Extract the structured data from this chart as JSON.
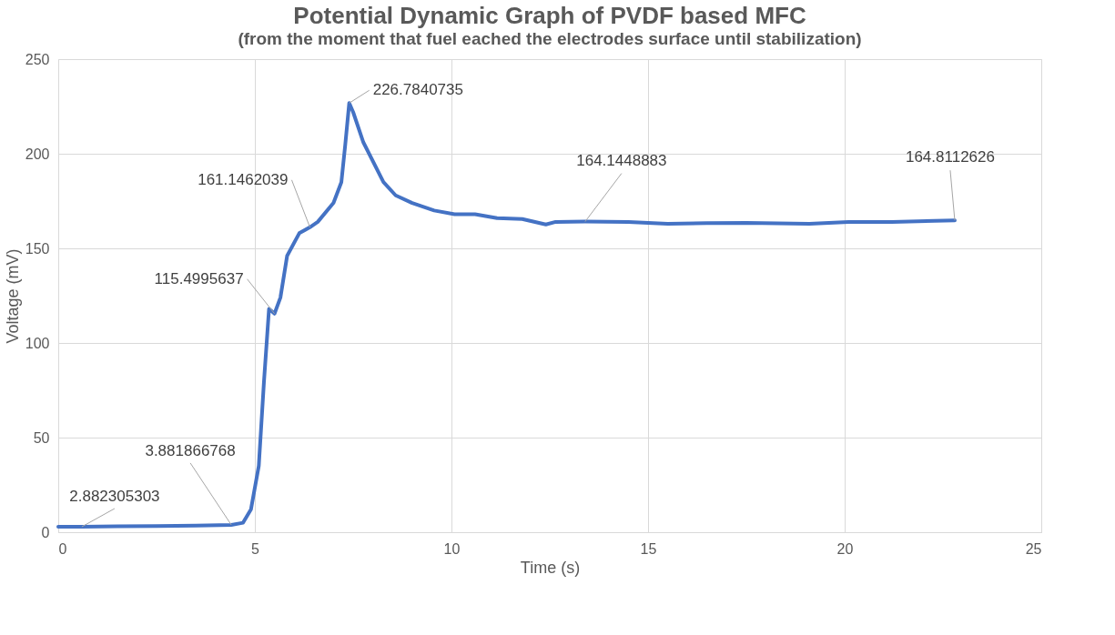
{
  "chart_data": {
    "type": "line",
    "title": "Potential Dynamic Graph of PVDF based MFC",
    "subtitle": "(from the moment that fuel eached the electrodes surface until stabilization)",
    "xlabel": "Time (s)",
    "ylabel": "Voltage (mV)",
    "x": [
      0,
      0.6,
      1.5,
      2.5,
      3.5,
      4.4,
      4.7,
      4.9,
      5.1,
      5.23,
      5.36,
      5.5,
      5.65,
      5.82,
      6.13,
      6.4,
      6.6,
      7.0,
      7.2,
      7.3,
      7.4,
      7.5,
      7.76,
      8.27,
      8.58,
      9.0,
      9.56,
      10.08,
      10.6,
      11.16,
      11.8,
      12.4,
      12.65,
      13.4,
      14.5,
      15.5,
      16.5,
      17.5,
      19.1,
      20.1,
      21.2,
      22.8
    ],
    "series": [
      {
        "color": "#4472c4",
        "values": [
          2.9,
          2.882305303,
          3.1,
          3.2,
          3.5,
          3.881866768,
          5,
          12,
          35,
          79,
          118,
          115.4995637,
          124,
          146,
          158,
          161.1462039,
          164,
          174,
          185,
          205,
          226.7840735,
          222,
          206,
          185,
          178,
          174,
          170,
          168,
          168,
          166,
          165.5,
          162.6,
          164,
          164.1448883,
          164,
          163,
          163.3,
          163.5,
          163,
          164,
          164,
          164.8112626
        ]
      }
    ],
    "xlim": [
      0,
      25
    ],
    "ylim": [
      0,
      250
    ],
    "xticks": [
      0,
      5,
      10,
      15,
      20,
      25
    ],
    "yticks": [
      0,
      50,
      100,
      150,
      200,
      250
    ],
    "grid": true,
    "marker": "none",
    "line_style": "solid",
    "annotations": [
      {
        "text": "2.882305303",
        "x": 0.6,
        "y": 2.882305303
      },
      {
        "text": "3.881866768",
        "x": 4.4,
        "y": 3.881866768
      },
      {
        "text": "115.4995637",
        "x": 5.5,
        "y": 115.4995637
      },
      {
        "text": "161.1462039",
        "x": 6.4,
        "y": 161.1462039
      },
      {
        "text": "226.7840735",
        "x": 7.4,
        "y": 226.7840735
      },
      {
        "text": "164.1448883",
        "x": 13.4,
        "y": 164.1448883
      },
      {
        "text": "164.8112626",
        "x": 22.8,
        "y": 164.8112626
      }
    ]
  }
}
